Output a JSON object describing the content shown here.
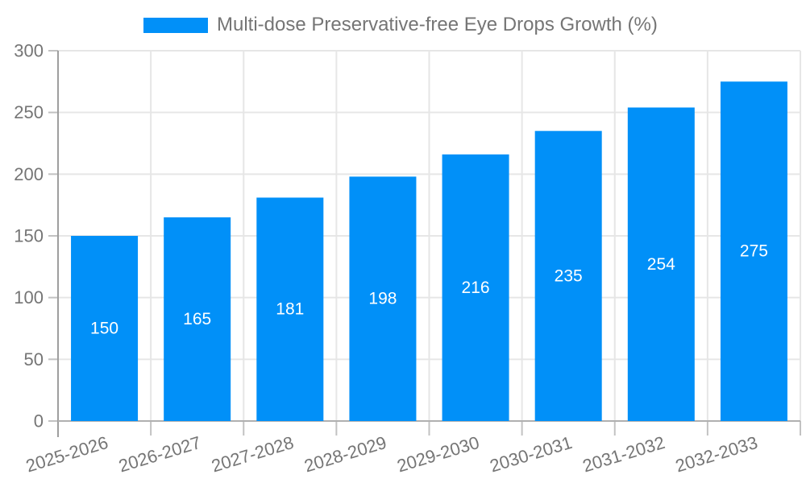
{
  "chart_data": {
    "type": "bar",
    "title": "Multi-dose Preservative-free Eye Drops Growth (%)",
    "categories": [
      "2025-2026",
      "2026-2027",
      "2027-2028",
      "2028-2029",
      "2029-2030",
      "2030-2031",
      "2031-2032",
      "2032-2033"
    ],
    "values": [
      150,
      165,
      181,
      198,
      216,
      235,
      254,
      275
    ],
    "series": [
      {
        "name": "Multi-dose Preservative-free Eye Drops Growth (%)",
        "values": [
          150,
          165,
          181,
          198,
          216,
          235,
          254,
          275
        ]
      }
    ],
    "xlabel": "",
    "ylabel": "",
    "ylim": [
      0,
      300
    ],
    "yticks": [
      0,
      50,
      100,
      150,
      200,
      250,
      300
    ],
    "grid": true,
    "legend_position": "top",
    "bar_color": "#0190f8",
    "bar_label_color": "#ffffff",
    "axis_text_color": "#757575",
    "grid_color": "#e6e6e6",
    "axis_line_color": "#b0b0b0",
    "y_axis_line_color": "#9e9e9e",
    "tick_color": "#c2c2c2"
  }
}
